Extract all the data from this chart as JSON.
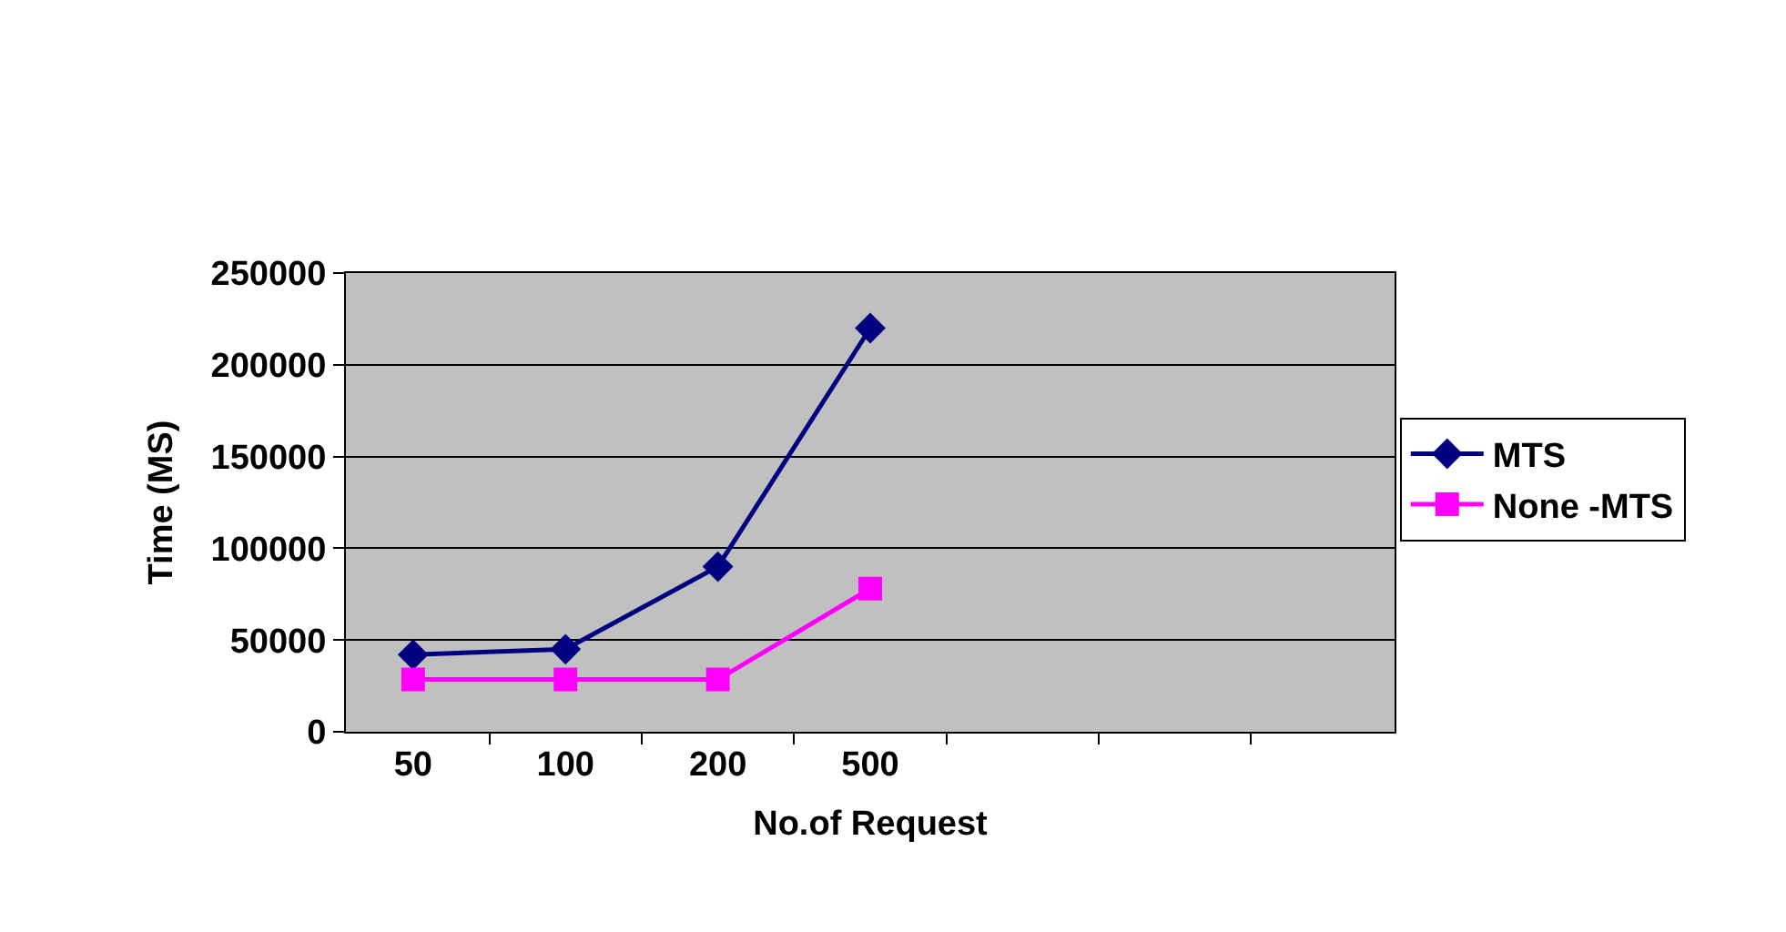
{
  "chart_data": {
    "type": "line",
    "xlabel": "No.of Request",
    "ylabel": "Time (MS)",
    "categories": [
      "50",
      "100",
      "200",
      "500",
      null,
      null,
      null
    ],
    "series": [
      {
        "name": "MTS",
        "color": "#000080",
        "marker": "diamond",
        "values": [
          42000,
          45000,
          90000,
          220000,
          null,
          null,
          null
        ]
      },
      {
        "name": "None -MTS",
        "color": "#ff00ff",
        "marker": "square",
        "values": [
          28500,
          28500,
          28500,
          78000,
          null,
          null,
          null
        ]
      }
    ],
    "ylim": [
      0,
      250000
    ],
    "yticks": [
      0,
      50000,
      100000,
      150000,
      200000,
      250000
    ],
    "grid": "y",
    "legend": "right",
    "line_style": "solid"
  }
}
